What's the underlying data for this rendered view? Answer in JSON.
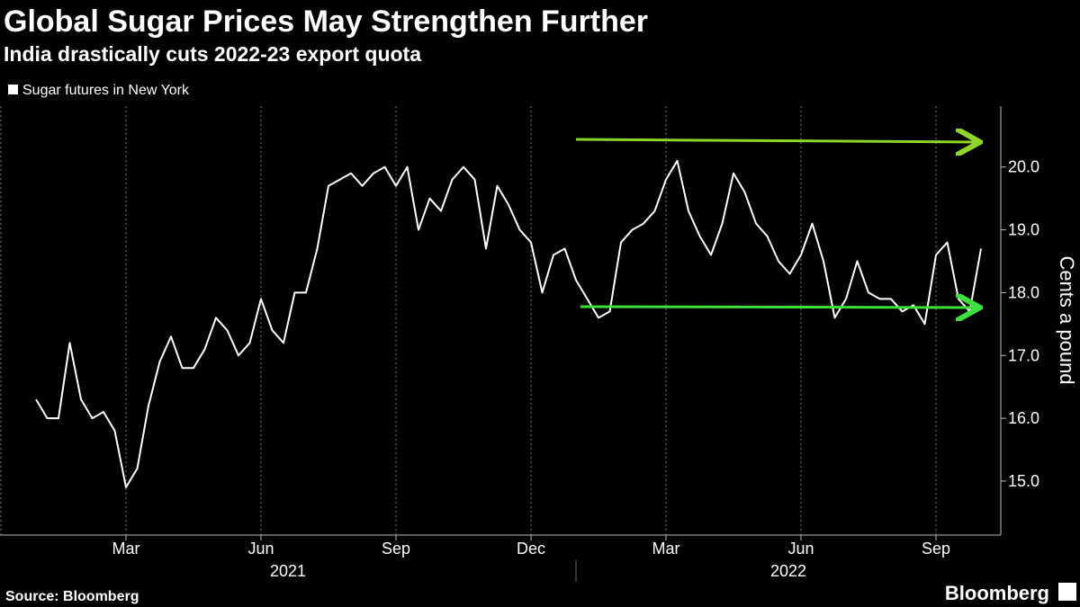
{
  "chart_data": {
    "type": "line",
    "title": "Global Sugar Prices May Strengthen Further",
    "subtitle": "India drastically cuts 2022-23 export quota",
    "y_axis_label": "Cents a pound",
    "source": "Source: Bloomberg",
    "brand": "Bloomberg",
    "grid": true,
    "series": [
      {
        "name": "Sugar futures in New York",
        "color": "#ffffff",
        "x": [
          "2021-01",
          "2021-01",
          "2021-01",
          "2021-01",
          "2021-02",
          "2021-02",
          "2021-02",
          "2021-02",
          "2021-03",
          "2021-03",
          "2021-03",
          "2021-03",
          "2021-04",
          "2021-04",
          "2021-04",
          "2021-04",
          "2021-05",
          "2021-05",
          "2021-05",
          "2021-05",
          "2021-06",
          "2021-06",
          "2021-06",
          "2021-06",
          "2021-07",
          "2021-07",
          "2021-07",
          "2021-07",
          "2021-08",
          "2021-08",
          "2021-08",
          "2021-08",
          "2021-09",
          "2021-09",
          "2021-09",
          "2021-09",
          "2021-10",
          "2021-10",
          "2021-10",
          "2021-10",
          "2021-11",
          "2021-11",
          "2021-11",
          "2021-11",
          "2021-12",
          "2021-12",
          "2021-12",
          "2021-12",
          "2022-01",
          "2022-01",
          "2022-01",
          "2022-01",
          "2022-02",
          "2022-02",
          "2022-02",
          "2022-02",
          "2022-03",
          "2022-03",
          "2022-03",
          "2022-03",
          "2022-04",
          "2022-04",
          "2022-04",
          "2022-04",
          "2022-05",
          "2022-05",
          "2022-05",
          "2022-05",
          "2022-06",
          "2022-06",
          "2022-06",
          "2022-06",
          "2022-07",
          "2022-07",
          "2022-07",
          "2022-07",
          "2022-08",
          "2022-08",
          "2022-08",
          "2022-08",
          "2022-09",
          "2022-09",
          "2022-09",
          "2022-09",
          "2022-10"
        ],
        "values": [
          16.3,
          16.0,
          16.0,
          17.2,
          16.3,
          16.0,
          16.1,
          15.8,
          14.9,
          15.2,
          16.2,
          16.9,
          17.3,
          16.8,
          16.8,
          17.1,
          17.6,
          17.4,
          17.0,
          17.2,
          17.9,
          17.4,
          17.2,
          18.0,
          18.0,
          18.7,
          19.7,
          19.8,
          19.9,
          19.7,
          19.9,
          20.0,
          19.7,
          20.0,
          19.0,
          19.5,
          19.3,
          19.8,
          20.0,
          19.8,
          18.7,
          19.7,
          19.4,
          19.0,
          18.8,
          18.0,
          18.6,
          18.7,
          18.2,
          17.9,
          17.6,
          17.7,
          18.8,
          19.0,
          19.1,
          19.3,
          19.8,
          20.1,
          19.3,
          18.9,
          18.6,
          19.1,
          19.9,
          19.6,
          19.1,
          18.9,
          18.5,
          18.3,
          18.6,
          19.1,
          18.5,
          17.6,
          17.9,
          18.5,
          18.0,
          17.9,
          17.9,
          17.7,
          17.8,
          17.5,
          18.6,
          18.8,
          17.9,
          17.7,
          18.7
        ]
      }
    ],
    "xticks": [
      {
        "value": "2021-03",
        "label": "Mar"
      },
      {
        "value": "2021-06",
        "label": "Jun"
      },
      {
        "value": "2021-09",
        "label": "Sep"
      },
      {
        "value": "2021-12",
        "label": "Dec"
      },
      {
        "value": "2022-03",
        "label": "Mar"
      },
      {
        "value": "2022-06",
        "label": "Jun"
      },
      {
        "value": "2022-09",
        "label": "Sep"
      }
    ],
    "years": [
      "2021",
      "2022"
    ],
    "ylim": [
      14.14,
      20.97
    ],
    "yticks": [
      {
        "value": 15,
        "label": "15.0"
      },
      {
        "value": 16,
        "label": "16.0"
      },
      {
        "value": 17,
        "label": "17.0"
      },
      {
        "value": 18,
        "label": "18.0"
      },
      {
        "value": 19,
        "label": "19.0"
      },
      {
        "value": 20,
        "label": "20.0"
      }
    ]
  }
}
